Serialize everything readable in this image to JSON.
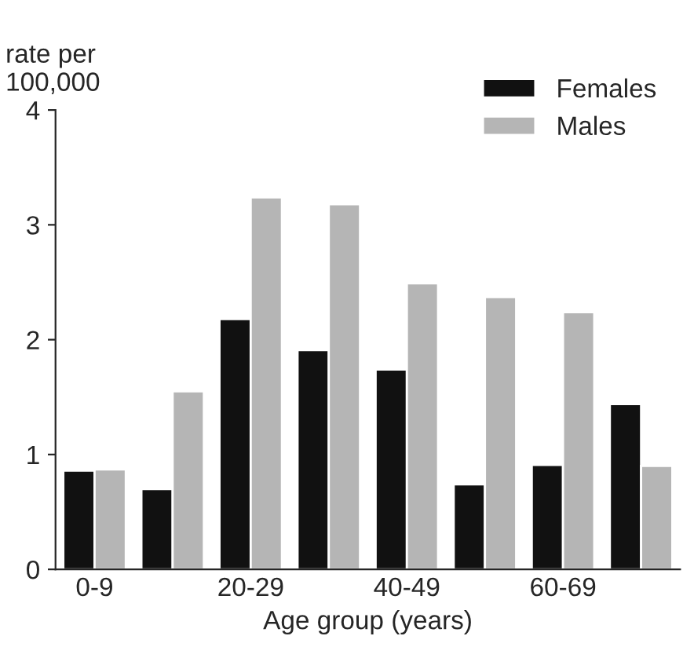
{
  "chart_data": {
    "type": "bar",
    "ylabel": "rate per\n100,000",
    "xlabel": "Age group (years)",
    "categories": [
      "0-9",
      null,
      "20-29",
      null,
      "40-49",
      null,
      "60-69",
      null
    ],
    "series": [
      {
        "name": "Females",
        "color": "#111111",
        "values": [
          0.86,
          0.7,
          2.18,
          1.91,
          1.74,
          0.74,
          0.91,
          1.44
        ]
      },
      {
        "name": "Males",
        "color": "#b5b5b5",
        "values": [
          0.87,
          1.55,
          3.24,
          3.18,
          2.49,
          2.37,
          2.24,
          0.9
        ]
      }
    ],
    "ylim": [
      0,
      4
    ],
    "yticks": [
      0,
      1,
      2,
      3,
      4
    ],
    "grid": false,
    "legend": "top right"
  }
}
